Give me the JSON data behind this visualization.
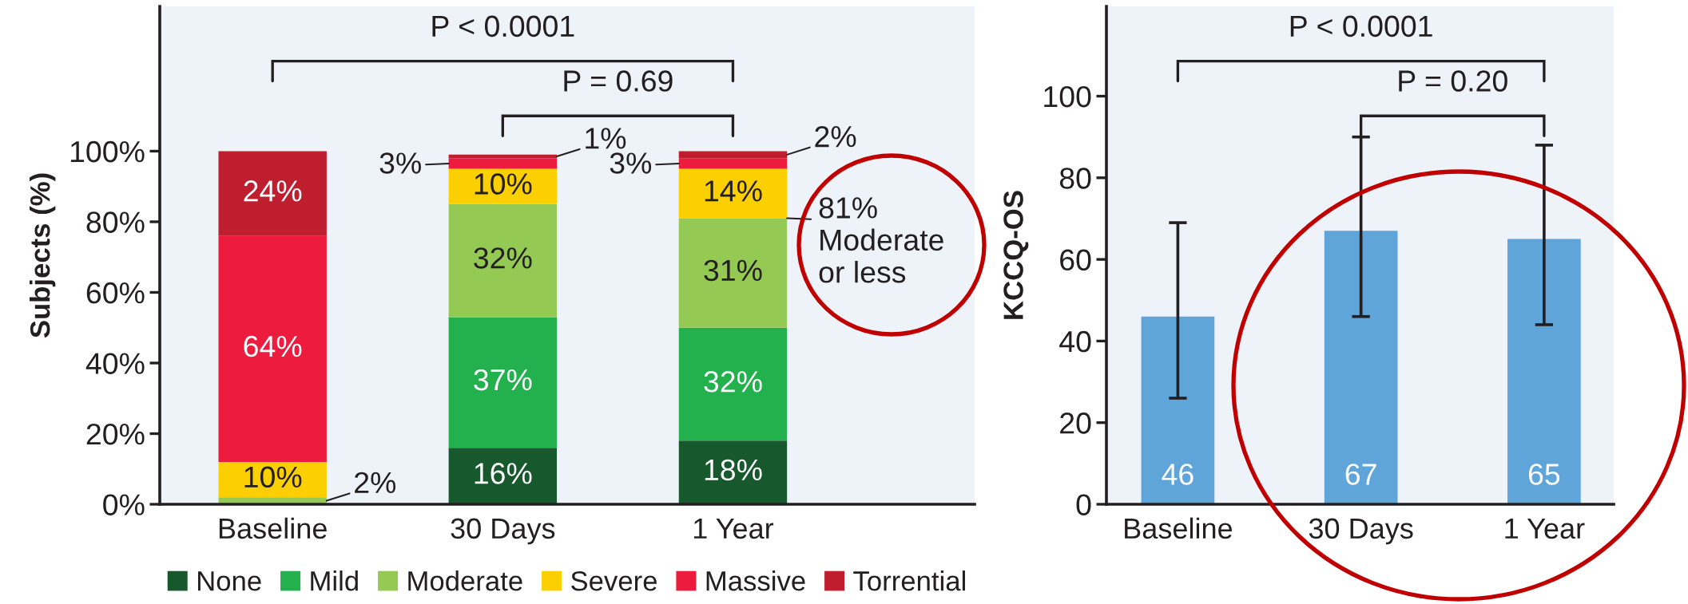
{
  "chart_data": [
    {
      "type": "bar",
      "stacked": true,
      "ylabel": "Subjects (%)",
      "categories": [
        "Baseline",
        "30 Days",
        "1 Year"
      ],
      "series": [
        {
          "name": "None",
          "color": "#17582d",
          "values": [
            null,
            16,
            18
          ],
          "value_labels": [
            null,
            "16%",
            "18%"
          ]
        },
        {
          "name": "Mild",
          "color": "#22b14c",
          "values": [
            null,
            37,
            32
          ],
          "value_labels": [
            null,
            "37%",
            "32%"
          ]
        },
        {
          "name": "Moderate",
          "color": "#94c954",
          "values": [
            2,
            32,
            31
          ],
          "value_labels": [
            "2%",
            "32%",
            "31%"
          ]
        },
        {
          "name": "Severe",
          "color": "#fcd000",
          "values": [
            10,
            10,
            14
          ],
          "value_labels": [
            "10%",
            "10%",
            "14%"
          ]
        },
        {
          "name": "Massive",
          "color": "#ed1c3e",
          "values": [
            64,
            3,
            3
          ],
          "value_labels": [
            "64%",
            "3%",
            "3%"
          ]
        },
        {
          "name": "Torrential",
          "color": "#be1e2d",
          "values": [
            24,
            1,
            2
          ],
          "value_labels": [
            "24%",
            "1%",
            "2%"
          ]
        }
      ],
      "ylim": [
        0,
        141
      ],
      "yticks": [
        {
          "value": 0,
          "label": "0%"
        },
        {
          "value": 20,
          "label": "20%"
        },
        {
          "value": 40,
          "label": "40%"
        },
        {
          "value": 60,
          "label": "60%"
        },
        {
          "value": 80,
          "label": "80%"
        },
        {
          "value": 100,
          "label": "100%"
        }
      ],
      "legend": "bottom",
      "annotations": [
        "P < 0.0001",
        "P = 0.69",
        {
          "text": "81%\nModerate\nor less",
          "x": "1 Year",
          "y": 81
        }
      ]
    },
    {
      "type": "bar",
      "ylabel": "KCCQ-OS",
      "categories": [
        "Baseline",
        "30 Days",
        "1 Year"
      ],
      "values": [
        46,
        67,
        65
      ],
      "color": "#5fa5da",
      "errors": [
        [
          26,
          69
        ],
        [
          46,
          90
        ],
        [
          44,
          88
        ]
      ],
      "data_labels": true,
      "ylim": [
        0,
        122
      ],
      "yticks": [
        0,
        20,
        40,
        60,
        80,
        100
      ],
      "annotations": [
        "P < 0.0001",
        "P = 0.20"
      ]
    }
  ]
}
